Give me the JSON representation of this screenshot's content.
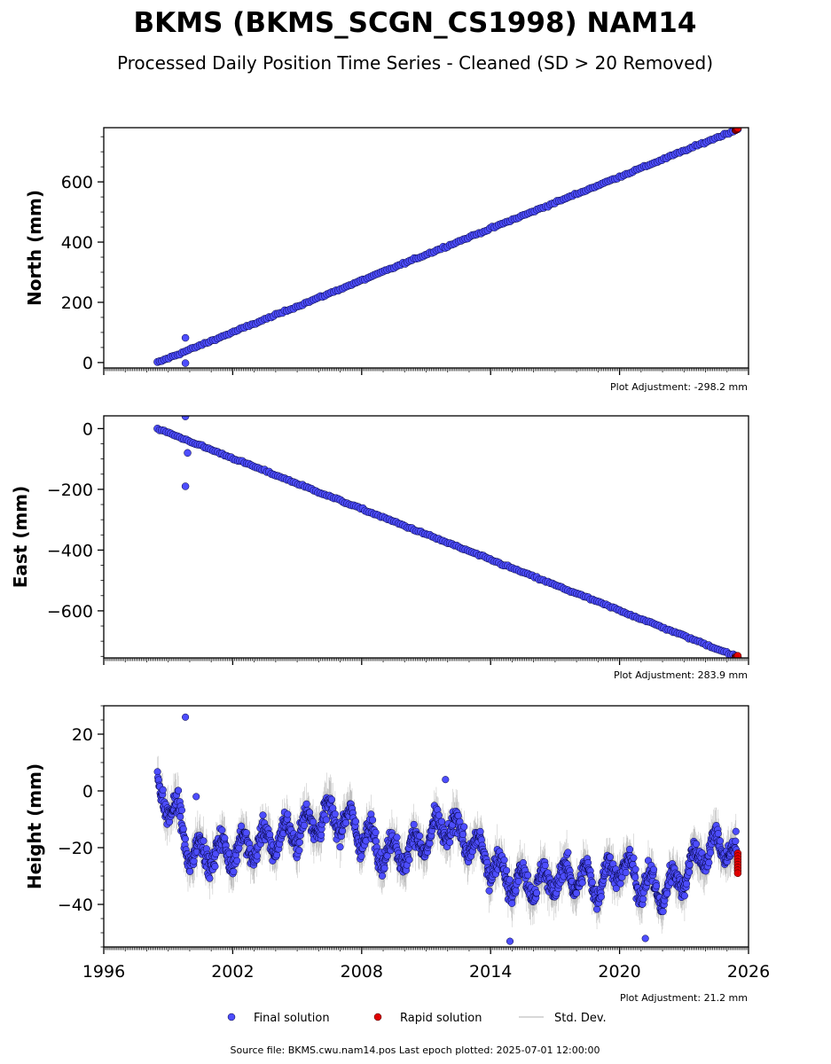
{
  "title": "BKMS (BKMS_SCGN_CS1998) NAM14",
  "subtitle": "Processed Daily Position Time Series - Cleaned (SD > 20 Removed)",
  "footer": "Source file: BKMS.cwu.nam14.pos  Last epoch plotted: 2025-07-01 12:00:00",
  "legend": {
    "final": "Final solution",
    "rapid": "Rapid solution",
    "std": "Std. Dev."
  },
  "colors": {
    "final_fill": "#4d4dff",
    "final_edge": "#000033",
    "rapid_fill": "#e00000",
    "std_line": "#999999"
  },
  "x_ticks": [
    "1996",
    "2002",
    "2008",
    "2014",
    "2020",
    "2026"
  ],
  "chart_data": [
    {
      "type": "scatter",
      "ylabel": "North (mm)",
      "adjustment": "Plot Adjustment: -298.2 mm",
      "xlim": [
        1996,
        2026
      ],
      "ylim": [
        -18,
        780
      ],
      "yticks": [
        0,
        200,
        400,
        600
      ],
      "yticklabels": [
        "0",
        "200",
        "400",
        "600"
      ],
      "trend": {
        "x0": 1998.5,
        "y0": 0,
        "x1": 2025.5,
        "y1": 775
      },
      "outliers": [
        {
          "x": 1999.8,
          "y": 82
        },
        {
          "x": 1999.8,
          "y": -2
        }
      ],
      "rapid": {
        "x0": 2025.4,
        "x1": 2025.5,
        "y0": 772,
        "y1": 778
      },
      "series": [
        {
          "name": "Final solution"
        },
        {
          "name": "Rapid solution"
        }
      ]
    },
    {
      "type": "scatter",
      "ylabel": "East (mm)",
      "adjustment": "Plot Adjustment: 283.9 mm",
      "xlim": [
        1996,
        2026
      ],
      "ylim": [
        -755,
        42
      ],
      "yticks": [
        -600,
        -400,
        -200,
        0
      ],
      "yticklabels": [
        "−600",
        "−400",
        "−200",
        "0"
      ],
      "trend": {
        "x0": 1998.5,
        "y0": 0,
        "x1": 2025.5,
        "y1": -752
      },
      "outliers": [
        {
          "x": 1999.8,
          "y": 40
        },
        {
          "x": 1999.9,
          "y": -80
        },
        {
          "x": 1999.8,
          "y": -190
        }
      ],
      "rapid": {
        "x0": 2025.4,
        "x1": 2025.5,
        "y0": -752,
        "y1": -748
      },
      "series": [
        {
          "name": "Final solution"
        },
        {
          "name": "Rapid solution"
        }
      ]
    },
    {
      "type": "scatter",
      "ylabel": "Height (mm)",
      "adjustment": "Plot Adjustment: 21.2 mm",
      "xlim": [
        1996,
        2026
      ],
      "ylim": [
        -55,
        30
      ],
      "yticks": [
        -40,
        -20,
        0,
        20
      ],
      "yticklabels": [
        "−40",
        "−20",
        "0",
        "20"
      ],
      "baseline": [
        {
          "x": 1998.5,
          "y": 0
        },
        {
          "x": 1999.0,
          "y": -4
        },
        {
          "x": 1999.5,
          "y": -10
        },
        {
          "x": 2000.0,
          "y": -22
        },
        {
          "x": 2001.0,
          "y": -22
        },
        {
          "x": 2002.0,
          "y": -21
        },
        {
          "x": 2003.0,
          "y": -19
        },
        {
          "x": 2004.0,
          "y": -17
        },
        {
          "x": 2005.0,
          "y": -14
        },
        {
          "x": 2006.0,
          "y": -10
        },
        {
          "x": 2007.0,
          "y": -9
        },
        {
          "x": 2008.0,
          "y": -15
        },
        {
          "x": 2009.0,
          "y": -21
        },
        {
          "x": 2010.0,
          "y": -22
        },
        {
          "x": 2011.0,
          "y": -17
        },
        {
          "x": 2012.0,
          "y": -12
        },
        {
          "x": 2013.0,
          "y": -18
        },
        {
          "x": 2014.0,
          "y": -25
        },
        {
          "x": 2015.0,
          "y": -32
        },
        {
          "x": 2016.0,
          "y": -33
        },
        {
          "x": 2017.0,
          "y": -31
        },
        {
          "x": 2018.0,
          "y": -30
        },
        {
          "x": 2019.0,
          "y": -33
        },
        {
          "x": 2020.0,
          "y": -26
        },
        {
          "x": 2021.0,
          "y": -32
        },
        {
          "x": 2022.0,
          "y": -36
        },
        {
          "x": 2023.0,
          "y": -29
        },
        {
          "x": 2024.0,
          "y": -21
        },
        {
          "x": 2025.0,
          "y": -19
        },
        {
          "x": 2025.5,
          "y": -24
        }
      ],
      "outliers": [
        {
          "x": 1999.8,
          "y": 26
        },
        {
          "x": 2014.9,
          "y": -53
        },
        {
          "x": 2021.2,
          "y": -52
        },
        {
          "x": 2000.3,
          "y": -2
        },
        {
          "x": 2011.9,
          "y": 4
        }
      ],
      "rapid_points": [
        -22,
        -23,
        -24,
        -25,
        -26,
        -27,
        -28,
        -29
      ],
      "rapid_x": 2025.5,
      "series": [
        {
          "name": "Final solution"
        },
        {
          "name": "Rapid solution"
        },
        {
          "name": "Std. Dev."
        }
      ]
    }
  ]
}
